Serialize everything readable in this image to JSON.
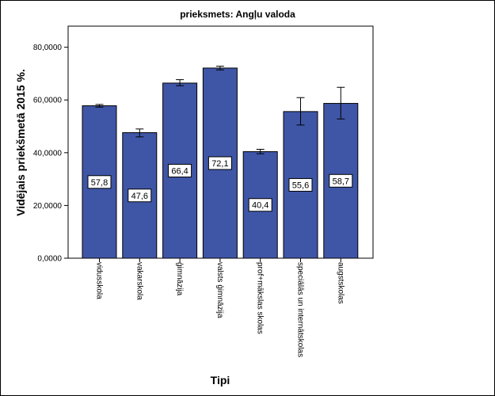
{
  "chart_data": {
    "type": "bar",
    "title": "prieksmets: Angļu valoda",
    "xlabel": "Tipi",
    "ylabel": "Vidējais priekšmetā 2015 %.",
    "categories": [
      "vidusskola",
      "vakarskola",
      "ģimnāzija",
      "valsts ģimnāzija",
      "prof+mākslas skolas",
      "speciālās un internātskolas",
      "augstskolas"
    ],
    "values": [
      57.8,
      47.6,
      66.4,
      72.1,
      40.4,
      55.6,
      58.7
    ],
    "data_labels": [
      "57,8",
      "47,6",
      "66,4",
      "72,1",
      "40,4",
      "55,6",
      "58,7"
    ],
    "error_low": [
      57.3,
      46.0,
      65.4,
      71.4,
      39.6,
      50.5,
      52.8
    ],
    "error_high": [
      58.3,
      49.0,
      67.7,
      72.8,
      41.3,
      60.9,
      64.8
    ],
    "ylim": [
      0,
      88
    ],
    "yticks": [
      0,
      20,
      40,
      60,
      80
    ],
    "ytick_labels": [
      "0,0000",
      "20,0000",
      "40,0000",
      "60,0000",
      "80,0000"
    ],
    "grid": false,
    "colors": {
      "bar": "#3f56a7",
      "bar_stroke": "#000000",
      "label_box": "#ffffff"
    }
  }
}
